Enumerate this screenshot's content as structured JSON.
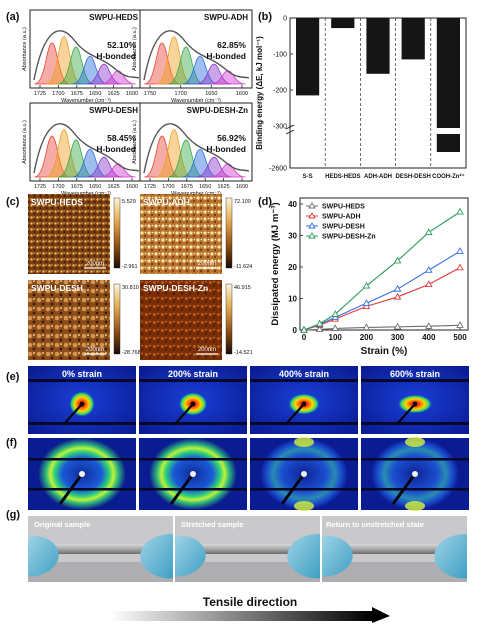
{
  "panel_labels": {
    "a": "(a)",
    "b": "(b)",
    "c": "(c)",
    "d": "(d)",
    "e": "(e)",
    "f": "(f)",
    "g": "(g)"
  },
  "ftir": {
    "ylabel": "Absorbance (a.u.)",
    "xlabel": "Wavenumber (cm⁻¹)",
    "ticks_a": [
      "1725",
      "1700",
      "1675",
      "1650",
      "1625",
      "1600"
    ],
    "ticks_adh": [
      "1750",
      "1700",
      "1650",
      "1600"
    ],
    "ticks_c": [
      "1725",
      "1700",
      "1675",
      "1650",
      "1625",
      "1600"
    ],
    "ticks_zn": [
      "1725",
      "1700",
      "1675",
      "1650",
      "1625",
      "1600"
    ],
    "panels": [
      {
        "title": "SWPU-HEDS",
        "percent": "52.10%",
        "note": "H-bonded"
      },
      {
        "title": "SWPU-ADH",
        "percent": "62.85%",
        "note": "H-bonded"
      },
      {
        "title": "SWPU-DESH",
        "percent": "58.45%",
        "note": "H-bonded"
      },
      {
        "title": "SWPU-DESH-Zn",
        "percent": "56.92%",
        "note": "H-bonded"
      }
    ]
  },
  "afm": {
    "panels": [
      {
        "title": "SWPU-HEDS",
        "max": "5.529",
        "min": "-2.961",
        "scale": "200nm"
      },
      {
        "title": "SWPU-ADH",
        "max": "72.109",
        "min": "-11.624",
        "scale": "200nm"
      },
      {
        "title": "SWPU-DESH",
        "max": "30.810",
        "min": "-28.768",
        "scale": "200nm"
      },
      {
        "title": "SWPU-DESH-Zn",
        "max": "46.915",
        "min": "-14.521",
        "scale": "200nm"
      }
    ]
  },
  "saxs": {
    "labels": [
      "0% strain",
      "200% strain",
      "400% strain",
      "600% strain"
    ]
  },
  "photos": {
    "labels": [
      "Original sample",
      "Stretched sample",
      "Return to unstretched state"
    ]
  },
  "tensile": {
    "label": "Tensile direction"
  },
  "colors": {
    "hbond_red": "#d2231f",
    "black_bar": "#151515"
  },
  "chart_data": [
    {
      "type": "bar",
      "ylabel": "Binding energy (ΔE, kJ mol⁻¹)",
      "categories": [
        "S-S",
        "HEDS-HEDS",
        "ADH-ADH",
        "DESH-DESH",
        "COOH-Zn²⁺"
      ],
      "values": [
        -215,
        -28,
        -155,
        -115,
        -2450
      ],
      "yticks": [
        "0",
        "-100",
        "-200",
        "-300",
        "-2600"
      ],
      "axis_break": true
    },
    {
      "type": "line",
      "xlabel": "Strain (%)",
      "ylabel": "Dissipated energy (MJ m⁻³)",
      "x": [
        0,
        50,
        100,
        200,
        300,
        400,
        500
      ],
      "xlim": [
        0,
        500
      ],
      "ylim": [
        0,
        40
      ],
      "xticks": [
        "0",
        "100",
        "200",
        "300",
        "400",
        "500"
      ],
      "yticks": [
        "0",
        "10",
        "20",
        "30",
        "40"
      ],
      "legend": "top-left",
      "series": [
        {
          "name": "SWPU-HEDS",
          "color": "#707070",
          "marker": "triangle-up",
          "values": [
            0,
            0.2,
            0.5,
            0.8,
            1.0,
            1.2,
            1.5
          ]
        },
        {
          "name": "SWPU-ADH",
          "color": "#e03a3a",
          "marker": "triangle-up",
          "values": [
            0,
            1.5,
            3.5,
            7.5,
            10.5,
            14.5,
            19.8
          ]
        },
        {
          "name": "SWPU-DESH",
          "color": "#3a6fe0",
          "marker": "triangle-up",
          "values": [
            0,
            1.8,
            4.0,
            8.5,
            13.0,
            19.0,
            25.0
          ]
        },
        {
          "name": "SWPU-DESH-Zn",
          "color": "#2e9a5a",
          "marker": "triangle-up",
          "values": [
            0,
            2.0,
            5.0,
            14.0,
            22.0,
            31.0,
            37.5
          ]
        }
      ]
    }
  ]
}
